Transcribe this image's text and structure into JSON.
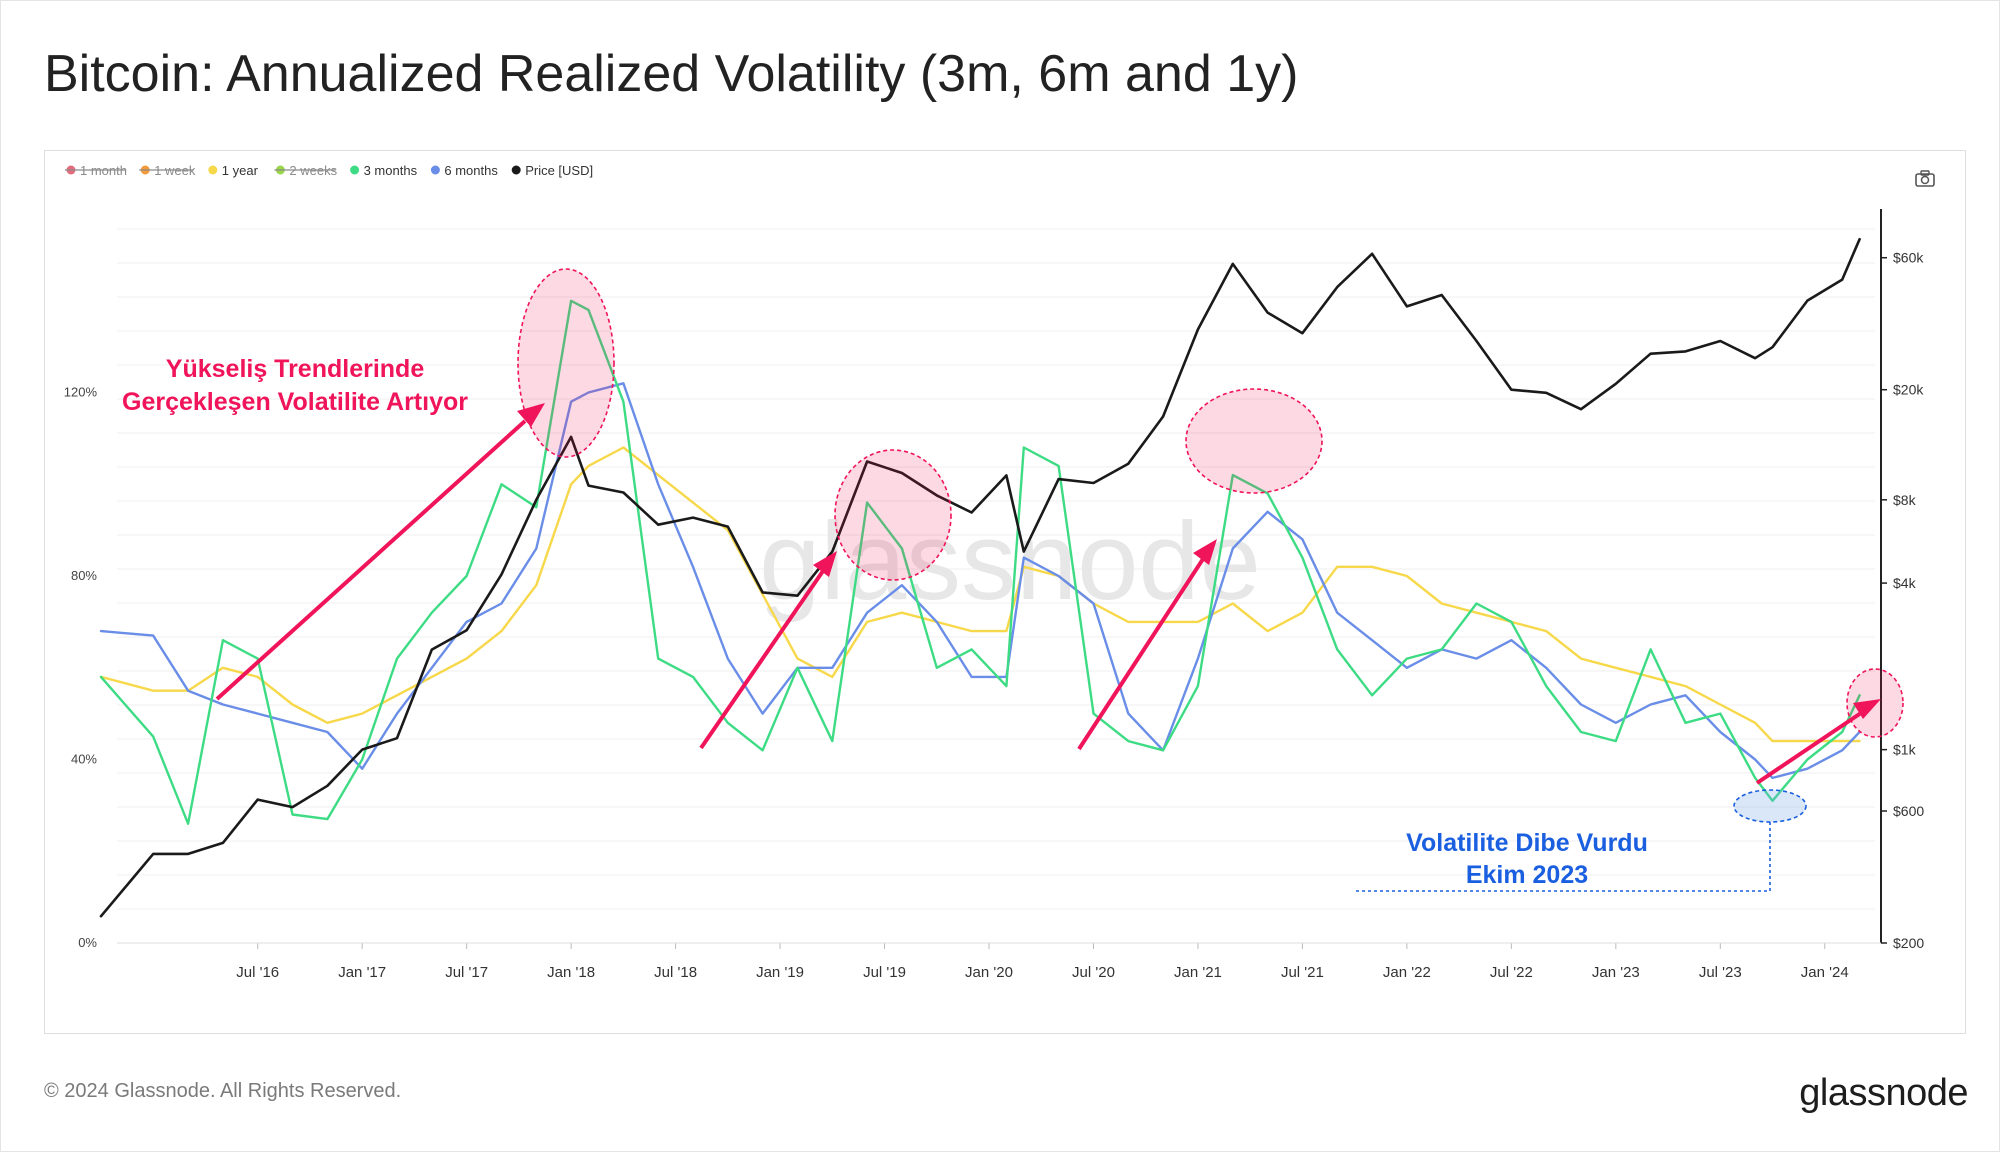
{
  "title": "Bitcoin: Annualized Realized Volatility (3m, 6m and 1y)",
  "footer": "© 2024 Glassnode. All Rights Reserved.",
  "brand": "glassnode",
  "watermark": "glassnode",
  "annotations": {
    "rising_line1": "Yükseliş Trendlerinde",
    "rising_line2": "Gerçekleşen Volatilite Artıyor",
    "bottom_line1": "Volatilite Dibe Vurdu",
    "bottom_line2": "Ekim 2023"
  },
  "colors": {
    "one_month": "#e36b7c",
    "one_week": "#f39a3b",
    "one_year": "#f7d84a",
    "two_weeks": "#9bd64a",
    "three_months": "#3ddc84",
    "six_months": "#6a8ee8",
    "price": "#1a1a1a",
    "annotation_red": "#f0145a",
    "annotation_blue": "#1a5fe0"
  },
  "chart_data": {
    "type": "line",
    "title": "Bitcoin: Annualized Realized Volatility (3m, 6m and 1y)",
    "x_ticks": [
      "Jul '16",
      "Jan '17",
      "Jul '17",
      "Jan '18",
      "Jul '18",
      "Jan '19",
      "Jul '19",
      "Jan '20",
      "Jul '20",
      "Jan '21",
      "Jul '21",
      "Jan '22",
      "Jul '22",
      "Jan '23",
      "Jul '23",
      "Jan '24"
    ],
    "x_range": [
      "2015-10",
      "2024-04"
    ],
    "y_left": {
      "ticks": [
        "0%",
        "40%",
        "80%",
        "120%"
      ],
      "range": [
        0,
        160
      ],
      "unit": "%"
    },
    "y_right": {
      "scale": "log",
      "ticks": [
        "$200",
        "$600",
        "$1k",
        "$4k",
        "$8k",
        "$20k",
        "$60k"
      ],
      "range": [
        200,
        90000
      ]
    },
    "legend": [
      {
        "label": "1 month",
        "hidden": true
      },
      {
        "label": "1 week",
        "hidden": true
      },
      {
        "label": "1 year",
        "hidden": false
      },
      {
        "label": "2 weeks",
        "hidden": true
      },
      {
        "label": "3 months",
        "hidden": false
      },
      {
        "label": "6 months",
        "hidden": false
      },
      {
        "label": "Price [USD]",
        "hidden": false
      }
    ],
    "series": [
      {
        "name": "3 months",
        "axis": "left",
        "x": [
          "2015-10",
          "2016-01",
          "2016-03",
          "2016-05",
          "2016-07",
          "2016-09",
          "2016-11",
          "2017-01",
          "2017-03",
          "2017-05",
          "2017-07",
          "2017-09",
          "2017-11",
          "2018-01",
          "2018-02",
          "2018-04",
          "2018-06",
          "2018-08",
          "2018-10",
          "2018-12",
          "2019-02",
          "2019-04",
          "2019-06",
          "2019-08",
          "2019-10",
          "2019-12",
          "2020-02",
          "2020-03",
          "2020-05",
          "2020-07",
          "2020-09",
          "2020-11",
          "2021-01",
          "2021-03",
          "2021-05",
          "2021-07",
          "2021-09",
          "2021-11",
          "2022-01",
          "2022-03",
          "2022-05",
          "2022-07",
          "2022-09",
          "2022-11",
          "2023-01",
          "2023-03",
          "2023-05",
          "2023-07",
          "2023-09",
          "2023-10",
          "2023-12",
          "2024-02",
          "2024-03"
        ],
        "values": [
          58,
          45,
          26,
          66,
          62,
          28,
          27,
          40,
          62,
          72,
          80,
          100,
          95,
          140,
          138,
          118,
          62,
          58,
          48,
          42,
          60,
          44,
          96,
          86,
          60,
          64,
          56,
          108,
          104,
          50,
          44,
          42,
          56,
          102,
          98,
          84,
          64,
          54,
          62,
          64,
          74,
          70,
          56,
          46,
          44,
          64,
          48,
          50,
          36,
          31,
          40,
          46,
          54
        ]
      },
      {
        "name": "6 months",
        "axis": "left",
        "x": [
          "2015-10",
          "2016-01",
          "2016-03",
          "2016-05",
          "2016-07",
          "2016-09",
          "2016-11",
          "2017-01",
          "2017-03",
          "2017-05",
          "2017-07",
          "2017-09",
          "2017-11",
          "2018-01",
          "2018-02",
          "2018-04",
          "2018-06",
          "2018-08",
          "2018-10",
          "2018-12",
          "2019-02",
          "2019-04",
          "2019-06",
          "2019-08",
          "2019-10",
          "2019-12",
          "2020-02",
          "2020-03",
          "2020-05",
          "2020-07",
          "2020-09",
          "2020-11",
          "2021-01",
          "2021-03",
          "2021-05",
          "2021-07",
          "2021-09",
          "2021-11",
          "2022-01",
          "2022-03",
          "2022-05",
          "2022-07",
          "2022-09",
          "2022-11",
          "2023-01",
          "2023-03",
          "2023-05",
          "2023-07",
          "2023-09",
          "2023-10",
          "2023-12",
          "2024-02",
          "2024-03"
        ],
        "values": [
          68,
          67,
          55,
          52,
          50,
          48,
          46,
          38,
          50,
          60,
          70,
          74,
          86,
          118,
          120,
          122,
          100,
          82,
          62,
          50,
          60,
          60,
          72,
          78,
          70,
          58,
          58,
          84,
          80,
          74,
          50,
          42,
          62,
          86,
          94,
          88,
          72,
          66,
          60,
          64,
          62,
          66,
          60,
          52,
          48,
          52,
          54,
          46,
          40,
          36,
          38,
          42,
          46
        ]
      },
      {
        "name": "1 year",
        "axis": "left",
        "x": [
          "2015-10",
          "2016-01",
          "2016-03",
          "2016-05",
          "2016-07",
          "2016-09",
          "2016-11",
          "2017-01",
          "2017-03",
          "2017-05",
          "2017-07",
          "2017-09",
          "2017-11",
          "2018-01",
          "2018-02",
          "2018-04",
          "2018-06",
          "2018-08",
          "2018-10",
          "2018-12",
          "2019-02",
          "2019-04",
          "2019-06",
          "2019-08",
          "2019-10",
          "2019-12",
          "2020-02",
          "2020-03",
          "2020-05",
          "2020-07",
          "2020-09",
          "2020-11",
          "2021-01",
          "2021-03",
          "2021-05",
          "2021-07",
          "2021-09",
          "2021-11",
          "2022-01",
          "2022-03",
          "2022-05",
          "2022-07",
          "2022-09",
          "2022-11",
          "2023-01",
          "2023-03",
          "2023-05",
          "2023-07",
          "2023-09",
          "2023-10",
          "2023-12",
          "2024-02",
          "2024-03"
        ],
        "values": [
          58,
          55,
          55,
          60,
          58,
          52,
          48,
          50,
          54,
          58,
          62,
          68,
          78,
          100,
          104,
          108,
          102,
          96,
          90,
          76,
          62,
          58,
          70,
          72,
          70,
          68,
          68,
          82,
          80,
          74,
          70,
          70,
          70,
          74,
          68,
          72,
          82,
          82,
          80,
          74,
          72,
          70,
          68,
          62,
          60,
          58,
          56,
          52,
          48,
          44,
          44,
          44,
          44
        ]
      },
      {
        "name": "Price [USD]",
        "axis": "right",
        "x": [
          "2015-10",
          "2016-01",
          "2016-03",
          "2016-05",
          "2016-07",
          "2016-09",
          "2016-11",
          "2017-01",
          "2017-03",
          "2017-05",
          "2017-07",
          "2017-09",
          "2017-11",
          "2018-01",
          "2018-02",
          "2018-04",
          "2018-06",
          "2018-08",
          "2018-10",
          "2018-12",
          "2019-02",
          "2019-04",
          "2019-06",
          "2019-08",
          "2019-10",
          "2019-12",
          "2020-02",
          "2020-03",
          "2020-05",
          "2020-07",
          "2020-09",
          "2020-11",
          "2021-01",
          "2021-03",
          "2021-05",
          "2021-07",
          "2021-09",
          "2021-11",
          "2022-01",
          "2022-03",
          "2022-05",
          "2022-07",
          "2022-09",
          "2022-11",
          "2023-01",
          "2023-03",
          "2023-05",
          "2023-07",
          "2023-09",
          "2023-10",
          "2023-12",
          "2024-02",
          "2024-03"
        ],
        "values": [
          250,
          420,
          420,
          460,
          660,
          620,
          740,
          1000,
          1100,
          2300,
          2700,
          4300,
          8000,
          13500,
          9000,
          8500,
          6500,
          6900,
          6400,
          3700,
          3600,
          5200,
          11000,
          10000,
          8300,
          7200,
          9800,
          5200,
          9500,
          9200,
          10800,
          16000,
          33000,
          57000,
          38000,
          32000,
          47000,
          62000,
          40000,
          44000,
          30000,
          20000,
          19500,
          17000,
          21000,
          27000,
          27500,
          30000,
          26000,
          28500,
          42000,
          50000,
          70000
        ]
      }
    ]
  }
}
